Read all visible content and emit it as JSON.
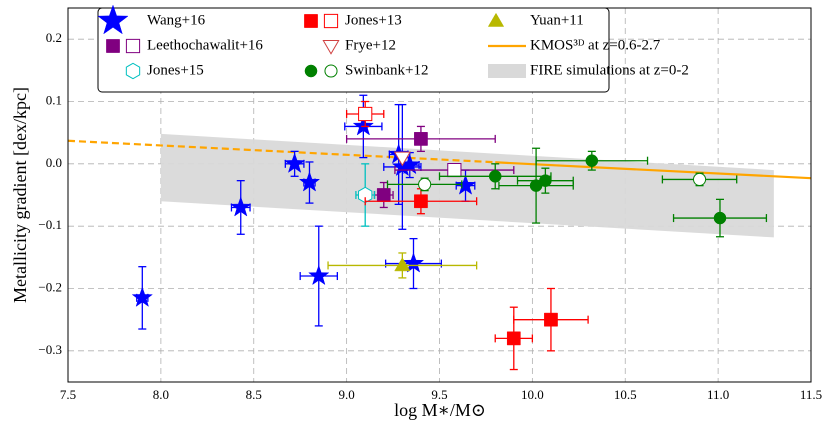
{
  "chart_data": {
    "type": "scatter",
    "xlabel": "log M∗/M⊙",
    "ylabel": "Metallicity gradient [dex/kpc]",
    "xlim": [
      7.5,
      11.5
    ],
    "ylim": [
      -0.35,
      0.25
    ],
    "xticks": [
      7.5,
      {
        "value": 8.0,
        "label": "8.0"
      },
      8.5,
      {
        "value": 9.0,
        "label": "9.0"
      },
      9.5,
      {
        "value": 10.0,
        "label": "10.0"
      },
      10.5,
      {
        "value": 11.0,
        "label": "11.0"
      },
      11.5
    ],
    "yticks": [
      {
        "value": -0.3,
        "label": "−0.3"
      },
      {
        "value": -0.2,
        "label": "−0.2"
      },
      {
        "value": -0.1,
        "label": "−0.1"
      },
      {
        "value": 0.0,
        "label": "0.0"
      },
      0.1,
      0.2
    ],
    "grid": true,
    "series": [
      {
        "name": "Wang+16",
        "color": "#0000ff",
        "marker": "star",
        "x": [
          7.9,
          8.43,
          8.72,
          8.8,
          8.85,
          9.09,
          9.28,
          9.3,
          9.34,
          9.36,
          9.64
        ],
        "values": [
          -0.215,
          -0.07,
          0.0,
          -0.03,
          -0.18,
          0.06,
          0.015,
          -0.005,
          -0.002,
          -0.16,
          -0.035
        ],
        "xerr": [
          0.03,
          0.05,
          0.05,
          0.03,
          0.1,
          0.1,
          0.05,
          0.1,
          0.05,
          0.15,
          0.05
        ],
        "yerr": [
          0.05,
          0.043,
          0.02,
          0.033,
          0.08,
          0.05,
          0.08,
          0.1,
          0.02,
          0.04,
          0.025
        ],
        "open": [
          false,
          false,
          false,
          false,
          false,
          false,
          false,
          false,
          false,
          false,
          false
        ]
      },
      {
        "name": "Leethochawalit+16",
        "color": "#800080",
        "marker": "square",
        "x": [
          9.2,
          9.4,
          9.58
        ],
        "values": [
          -0.05,
          0.04,
          -0.01
        ],
        "xerr": [
          0.05,
          0.4,
          0.32
        ],
        "yerr": [
          0.02,
          0.02,
          0.01
        ],
        "open": [
          false,
          false,
          true
        ]
      },
      {
        "name": "Jones+15",
        "color": "#00c0c0",
        "marker": "hexagon",
        "x": [
          9.1
        ],
        "values": [
          -0.05
        ],
        "xerr": [
          0.05
        ],
        "yerr": [
          0.05
        ],
        "open": [
          true
        ]
      },
      {
        "name": "Jones+13",
        "color": "#ff0000",
        "marker": "square",
        "x": [
          9.4,
          9.9,
          10.1,
          9.1
        ],
        "values": [
          -0.06,
          -0.28,
          -0.25,
          0.08
        ],
        "xerr": [
          0.3,
          0.1,
          0.2,
          0.1
        ],
        "yerr": [
          0.02,
          0.05,
          0.05,
          0.02
        ],
        "open": [
          false,
          false,
          false,
          true
        ]
      },
      {
        "name": "Frye+12",
        "color": "#d04040",
        "marker": "tridown",
        "x": [
          9.3
        ],
        "values": [
          0.01
        ],
        "xerr": [
          0
        ],
        "yerr": [
          0
        ],
        "open": [
          true
        ]
      },
      {
        "name": "Swinbank+12",
        "color": "#008000",
        "marker": "circle",
        "x": [
          9.8,
          10.02,
          10.07,
          10.32,
          11.01,
          9.42,
          10.9
        ],
        "values": [
          -0.02,
          -0.035,
          -0.027,
          0.005,
          -0.087,
          -0.033,
          -0.025
        ],
        "xerr": [
          0.3,
          0.2,
          0.15,
          0.3,
          0.25,
          0.2,
          0.2
        ],
        "yerr": [
          0.02,
          0.06,
          0.02,
          0.015,
          0.03,
          0.01,
          0.01
        ],
        "open": [
          false,
          false,
          false,
          false,
          false,
          true,
          true
        ]
      },
      {
        "name": "Yuan+11",
        "color": "#b8b800",
        "marker": "triup",
        "x": [
          9.3
        ],
        "values": [
          -0.163
        ],
        "xerr": [
          0.4
        ],
        "yerr": [
          0.02
        ],
        "open": [
          false
        ]
      }
    ],
    "kmos": {
      "name": "KMOS³ᴰ at z=0.6-2.7",
      "color": "#ffa500",
      "x": [
        7.5,
        9.8,
        11.5
      ],
      "values": [
        0.037,
        0.0025,
        -0.023
      ],
      "styles": [
        "dashed",
        "solid"
      ]
    },
    "fire": {
      "name": "FIRE simulations at z=0-2",
      "color": "#d9d9d9",
      "x": [
        8.0,
        11.3
      ],
      "upper": [
        0.048,
        -0.01
      ],
      "lower": [
        -0.06,
        -0.118
      ]
    }
  }
}
